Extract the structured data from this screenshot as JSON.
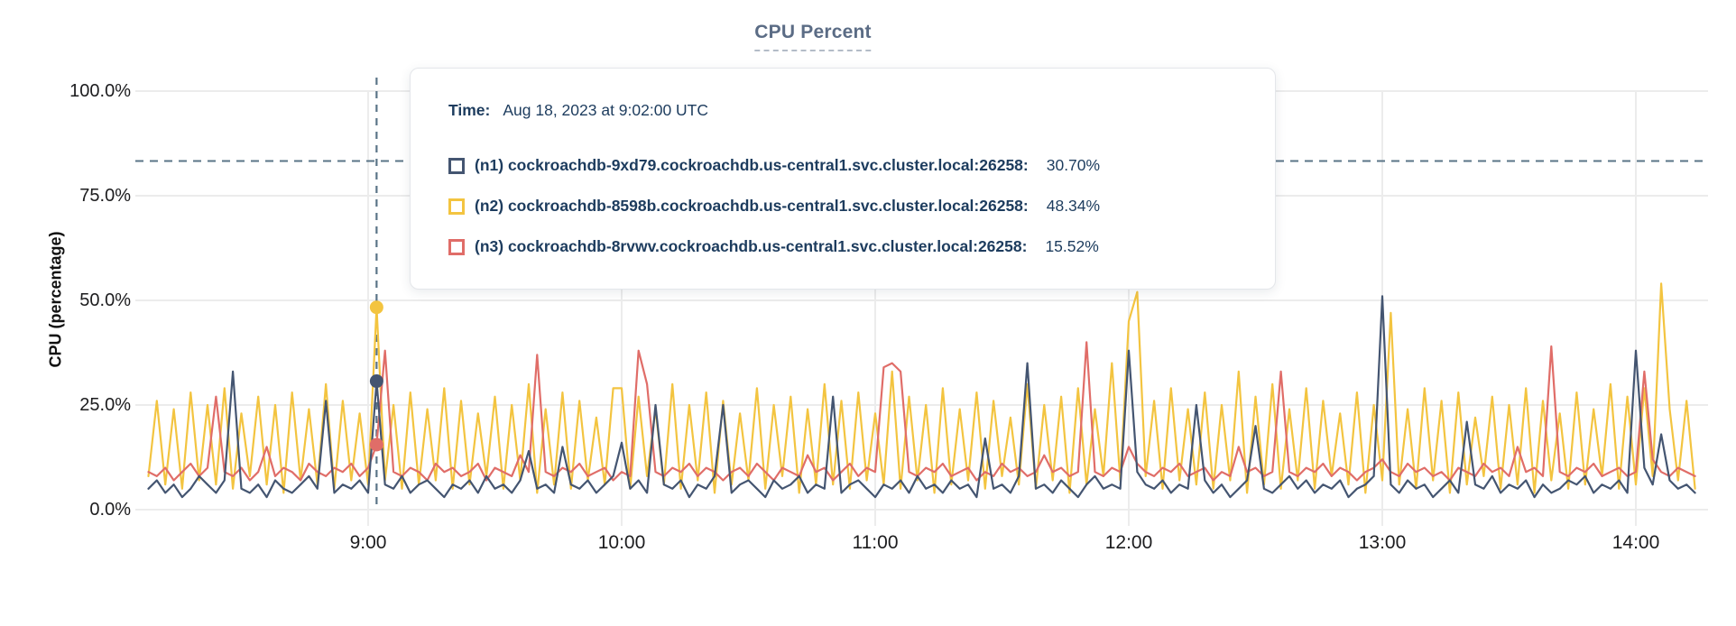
{
  "title": {
    "text": "CPU Percent",
    "color": "#5b6c85"
  },
  "y_axis": {
    "label": "CPU (percentage)"
  },
  "tooltip": {
    "time_label": "Time:",
    "time_value": "Aug 18, 2023 at 9:02:00 UTC",
    "rows": [
      {
        "node": "n1",
        "label": "(n1) cockroachdb-9xd79.cockroachdb.us-central1.svc.cluster.local:26258:",
        "value": "30.70%",
        "color": "#445571"
      },
      {
        "node": "n2",
        "label": "(n2) cockroachdb-8598b.cockroachdb.us-central1.svc.cluster.local:26258:",
        "value": "48.34%",
        "color": "#f3c440"
      },
      {
        "node": "n3",
        "label": "(n3) cockroachdb-8rvwv.cockroachdb.us-central1.svc.cluster.local:26258:",
        "value": "15.52%",
        "color": "#e06d68"
      }
    ]
  },
  "chart_data": {
    "type": "line",
    "title": "CPU Percent",
    "xlabel": "",
    "ylabel": "CPU (percentage)",
    "ylim": [
      0,
      100
    ],
    "grid": true,
    "legend_position": "tooltip-overlay",
    "y_tick_values": [
      0,
      25,
      50,
      75,
      100
    ],
    "y_tick_labels": [
      "0.0%",
      "25.0%",
      "50.0%",
      "75.0%",
      "100.0%"
    ],
    "x_tick_minutes": [
      540,
      600,
      660,
      720,
      780,
      840
    ],
    "x_tick_labels": [
      "9:00",
      "10:00",
      "11:00",
      "12:00",
      "13:00",
      "14:00"
    ],
    "x_start_minutes": 488,
    "x_step_minutes": 2,
    "threshold_percent": 83.3,
    "crosshair": {
      "time_minutes": 542,
      "index": 27,
      "time_text": "Aug 18, 2023 at 9:02:00 UTC"
    },
    "colors": {
      "grid": "#ececec",
      "dashed": "#5a7487",
      "tick_text": "#1c1c1e"
    },
    "series": [
      {
        "name": "cockroachdb-9xd79.cockroachdb.us-central1.svc.cluster.local:26258",
        "node": "n1",
        "color": "#445571",
        "hover_value": 30.7,
        "values": [
          5,
          7,
          4,
          6,
          3,
          5,
          8,
          6,
          4,
          7,
          33,
          5,
          4,
          6,
          3,
          7,
          5,
          4,
          6,
          8,
          5,
          26,
          4,
          6,
          5,
          7,
          4,
          30.7,
          6,
          5,
          8,
          4,
          6,
          7,
          5,
          3,
          6,
          5,
          7,
          4,
          8,
          5,
          6,
          4,
          7,
          14,
          5,
          6,
          4,
          15,
          6,
          5,
          7,
          4,
          6,
          8,
          16,
          5,
          7,
          4,
          25,
          6,
          5,
          7,
          3,
          6,
          5,
          8,
          25,
          4,
          6,
          7,
          5,
          3,
          7,
          5,
          6,
          8,
          4,
          6,
          5,
          27,
          4,
          6,
          7,
          5,
          3,
          6,
          5,
          7,
          4,
          8,
          5,
          6,
          4,
          7,
          5,
          6,
          3,
          17,
          5,
          6,
          4,
          8,
          35,
          5,
          6,
          4,
          7,
          5,
          3,
          6,
          8,
          5,
          6,
          5,
          38,
          9,
          6,
          5,
          7,
          4,
          6,
          5,
          25,
          7,
          4,
          6,
          3,
          5,
          7,
          20,
          5,
          4,
          6,
          8,
          5,
          7,
          4,
          6,
          5,
          7,
          3,
          5,
          6,
          8,
          51,
          6,
          4,
          7,
          5,
          6,
          3,
          5,
          7,
          4,
          21,
          6,
          5,
          8,
          4,
          6,
          5,
          7,
          3,
          6,
          4,
          5,
          7,
          6,
          8,
          4,
          6,
          5,
          7,
          4,
          38,
          10,
          6,
          18,
          7,
          5,
          6,
          4
        ]
      },
      {
        "name": "cockroachdb-8598b.cockroachdb.us-central1.svc.cluster.local:26258",
        "node": "n2",
        "color": "#f3c440",
        "hover_value": 48.34,
        "values": [
          8,
          26,
          6,
          24,
          5,
          28,
          7,
          25,
          6,
          29,
          5,
          23,
          8,
          27,
          6,
          25,
          4,
          28,
          7,
          24,
          6,
          30,
          5,
          26,
          7,
          23,
          6,
          48.34,
          7,
          25,
          5,
          28,
          6,
          24,
          7,
          29,
          5,
          26,
          6,
          23,
          8,
          27,
          5,
          25,
          7,
          30,
          4,
          24,
          6,
          28,
          5,
          26,
          7,
          22,
          6,
          29,
          29,
          5,
          27,
          8,
          24,
          6,
          30,
          5,
          25,
          7,
          28,
          4,
          26,
          6,
          23,
          7,
          29,
          5,
          25,
          8,
          27,
          4,
          24,
          6,
          30,
          6,
          26,
          5,
          28,
          7,
          23,
          6,
          33,
          5,
          27,
          7,
          25,
          4,
          29,
          6,
          24,
          7,
          28,
          5,
          26,
          8,
          22,
          6,
          30,
          5,
          25,
          7,
          27,
          4,
          29,
          6,
          24,
          8,
          35,
          7,
          45,
          52,
          8,
          26,
          5,
          29,
          7,
          24,
          6,
          28,
          5,
          25,
          7,
          33,
          4,
          27,
          6,
          30,
          5,
          24,
          7,
          29,
          5,
          26,
          8,
          23,
          6,
          28,
          4,
          25,
          7,
          47,
          6,
          24,
          5,
          29,
          7,
          26,
          4,
          28,
          6,
          22,
          8,
          27,
          5,
          25,
          6,
          29,
          4,
          26,
          7,
          23,
          5,
          28,
          6,
          24,
          8,
          30,
          5,
          27,
          6,
          29,
          8,
          54,
          24,
          7,
          26,
          5
        ]
      },
      {
        "name": "cockroachdb-8rvwv.cockroachdb.us-central1.svc.cluster.local:26258",
        "node": "n3",
        "color": "#e06d68",
        "hover_value": 15.52,
        "values": [
          9,
          8,
          10,
          7,
          9,
          11,
          8,
          10,
          27,
          9,
          8,
          10,
          7,
          9,
          15,
          8,
          10,
          9,
          7,
          11,
          9,
          8,
          10,
          9,
          11,
          8,
          10,
          15.52,
          38,
          9,
          8,
          10,
          9,
          7,
          11,
          9,
          10,
          8,
          9,
          11,
          7,
          10,
          9,
          8,
          13,
          9,
          37,
          9,
          8,
          10,
          9,
          11,
          8,
          9,
          10,
          7,
          9,
          8,
          38,
          30,
          9,
          8,
          10,
          9,
          11,
          8,
          10,
          9,
          7,
          9,
          10,
          8,
          11,
          9,
          7,
          10,
          9,
          8,
          13,
          9,
          10,
          7,
          9,
          11,
          8,
          10,
          9,
          34,
          35,
          33,
          9,
          8,
          10,
          9,
          11,
          8,
          9,
          10,
          7,
          9,
          8,
          11,
          9,
          10,
          8,
          9,
          13,
          9,
          10,
          8,
          9,
          40,
          9,
          8,
          10,
          9,
          15,
          11,
          9,
          8,
          10,
          9,
          11,
          8,
          9,
          10,
          7,
          9,
          8,
          15,
          9,
          10,
          8,
          9,
          33,
          9,
          8,
          10,
          9,
          11,
          8,
          10,
          9,
          7,
          9,
          10,
          12,
          9,
          8,
          11,
          9,
          10,
          8,
          9,
          7,
          10,
          9,
          8,
          11,
          9,
          10,
          8,
          15,
          9,
          10,
          8,
          39,
          9,
          8,
          10,
          9,
          11,
          8,
          9,
          10,
          8,
          9,
          33,
          12,
          9,
          8,
          10,
          9,
          8
        ]
      }
    ]
  }
}
